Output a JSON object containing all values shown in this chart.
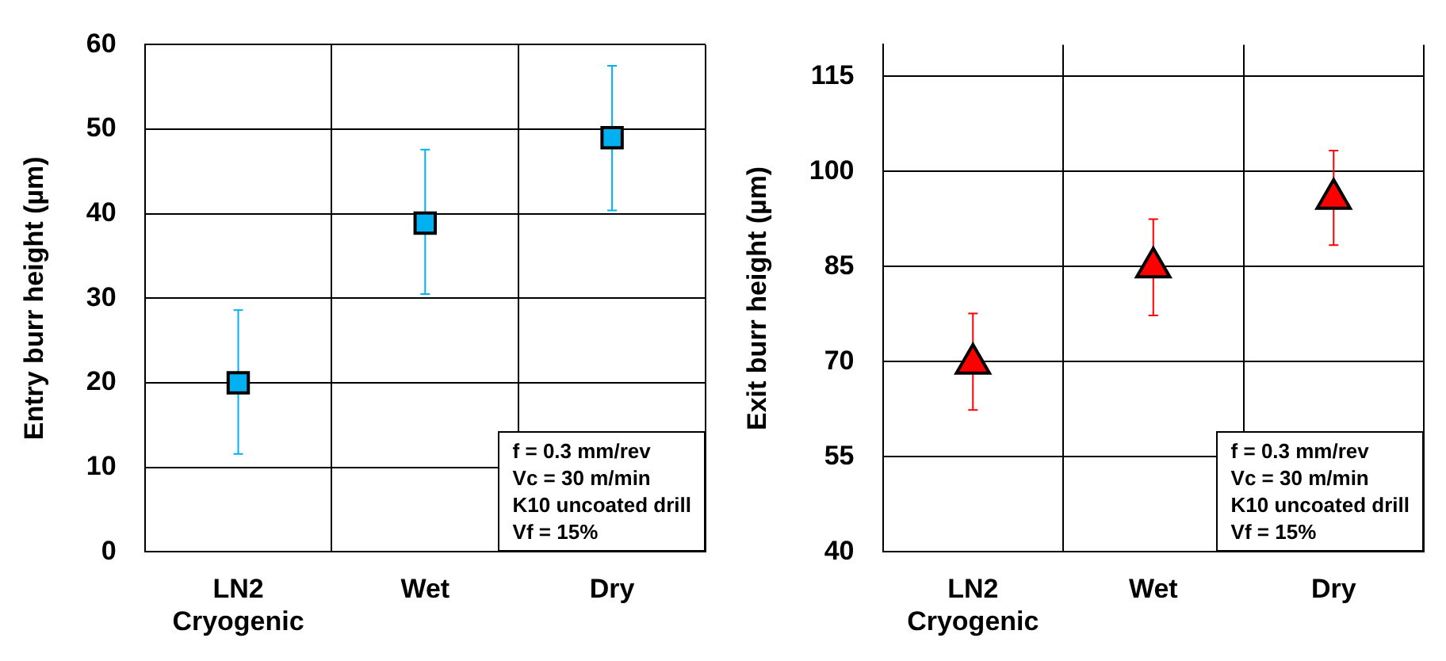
{
  "chart_data": [
    {
      "type": "scatter",
      "ylabel": "Entry burr height (µm)",
      "categories": [
        "LN2 Cryogenic",
        "Wet",
        "Dry"
      ],
      "series": [
        {
          "color": "#00b0f0",
          "values": [
            20,
            38.9,
            49
          ],
          "errors": [
            [
              11.6,
              28.6
            ],
            [
              30.5,
              47.6
            ],
            [
              40.4,
              57.5
            ]
          ]
        }
      ],
      "ylim": [
        0,
        60
      ],
      "yticks": [
        0,
        10,
        20,
        30,
        40,
        50,
        60
      ],
      "grid": true,
      "marker": "square",
      "legend": false,
      "annotations": [
        "f = 0.3 mm/rev",
        "Vc = 30 m/min",
        "K10 uncoated drill",
        "Vf = 15%"
      ]
    },
    {
      "type": "scatter",
      "ylabel": "Exit burr height (µm)",
      "categories": [
        "LN2 Cryogenic",
        "Wet",
        "Dry"
      ],
      "series": [
        {
          "color": "#ff0000",
          "values": [
            69.7,
            84.9,
            95.7
          ],
          "errors": [
            [
              62.4,
              77.6
            ],
            [
              77.3,
              92.5
            ],
            [
              88.4,
              103.3
            ]
          ]
        }
      ],
      "ylim": [
        40,
        120
      ],
      "yticks": [
        40,
        55,
        70,
        85,
        100,
        115
      ],
      "grid": true,
      "marker": "triangle",
      "legend": false,
      "annotations": [
        "f = 0.3 mm/rev",
        "Vc = 30 m/min",
        "K10 uncoated drill",
        "Vf = 15%"
      ]
    }
  ]
}
